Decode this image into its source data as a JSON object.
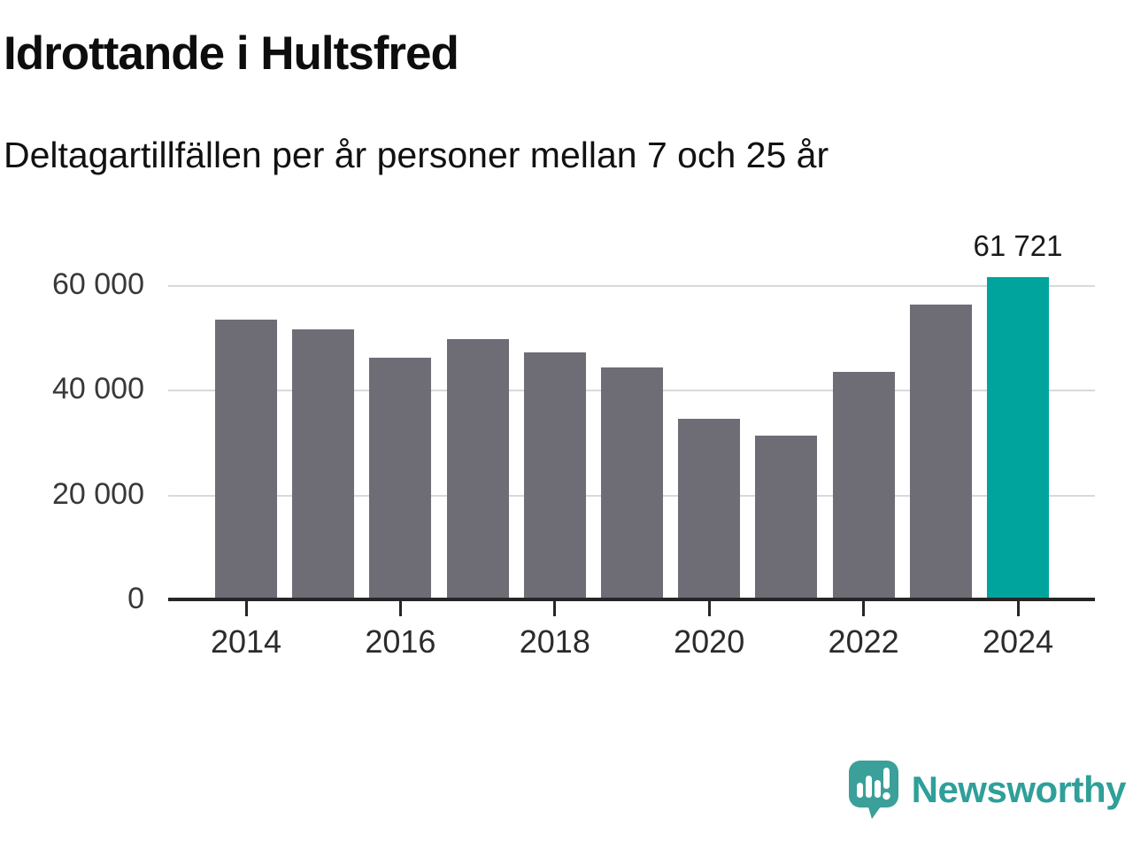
{
  "header": {
    "title": "Idrottande i Hultsfred",
    "subtitle": "Deltagartillfällen per år personer mellan 7 och 25 år"
  },
  "chart_data": {
    "type": "bar",
    "title": "Idrottande i Hultsfred",
    "subtitle": "Deltagartillfällen per år personer mellan 7 och 25 år",
    "xlabel": "",
    "ylabel": "",
    "categories": [
      2014,
      2015,
      2016,
      2017,
      2018,
      2019,
      2020,
      2021,
      2022,
      2023,
      2024
    ],
    "values": [
      53600,
      51700,
      46300,
      49800,
      47300,
      44400,
      34600,
      31400,
      43600,
      56400,
      61721
    ],
    "highlight_index": 10,
    "highlight_value_label": "61 721",
    "ylim": [
      0,
      63000
    ],
    "yticks": [
      {
        "value": 0,
        "label": "0"
      },
      {
        "value": 20000,
        "label": "20 000"
      },
      {
        "value": 40000,
        "label": "40 000"
      },
      {
        "value": 60000,
        "label": "60 000"
      }
    ],
    "xtick_years": [
      2014,
      2016,
      2018,
      2020,
      2022,
      2024
    ],
    "grid": true,
    "legend": "none",
    "colors": {
      "bar": "#6e6d76",
      "highlight": "#00a49c",
      "gridline": "#d9d9d9",
      "axis": "#262626"
    }
  },
  "footer": {
    "brand": "Newsworthy",
    "brand_color": "#2f9f99",
    "logo_icon": "speech-bubble-bar-chart"
  }
}
